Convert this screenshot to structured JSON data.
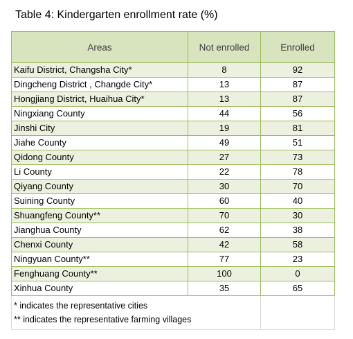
{
  "title": "Table 4: Kindergarten enrollment rate (%)",
  "headers": [
    "Areas",
    "Not enrolled",
    "Enrolled"
  ],
  "rows": [
    {
      "area": "Kaifu District, Changsha City*",
      "not_enrolled": "8",
      "enrolled": "92"
    },
    {
      "area": "Dingcheng District , Changde City*",
      "not_enrolled": "13",
      "enrolled": "87"
    },
    {
      "area": "Hongjiang District, Huaihua  City*",
      "not_enrolled": "13",
      "enrolled": "87"
    },
    {
      "area": "Ningxiang County",
      "not_enrolled": "44",
      "enrolled": "56"
    },
    {
      "area": "Jinshi City",
      "not_enrolled": "19",
      "enrolled": "81"
    },
    {
      "area": "Jiahe County",
      "not_enrolled": "49",
      "enrolled": "51"
    },
    {
      "area": "Qidong County",
      "not_enrolled": "27",
      "enrolled": "73"
    },
    {
      "area": "Li County",
      "not_enrolled": "22",
      "enrolled": "78"
    },
    {
      "area": "Qiyang County",
      "not_enrolled": "30",
      "enrolled": "70"
    },
    {
      "area": "Suining County",
      "not_enrolled": "60",
      "enrolled": "40"
    },
    {
      "area": "Shuangfeng County**",
      "not_enrolled": "70",
      "enrolled": "30"
    },
    {
      "area": "Jianghua County",
      "not_enrolled": "62",
      "enrolled": "38"
    },
    {
      "area": "Chenxi County",
      "not_enrolled": "42",
      "enrolled": "58"
    },
    {
      "area": "Ningyuan County**",
      "not_enrolled": "77",
      "enrolled": "23"
    },
    {
      "area": "Fenghuang County**",
      "not_enrolled": "100",
      "enrolled": "0"
    },
    {
      "area": "Xinhua County",
      "not_enrolled": "35",
      "enrolled": "65"
    }
  ],
  "notes": [
    "* indicates the representative cities",
    "** indicates the representative farming villages"
  ],
  "colors": {
    "header_fill": "#d7e4bd",
    "band_fill": "#ebf1de",
    "border": "#9bbb59"
  }
}
